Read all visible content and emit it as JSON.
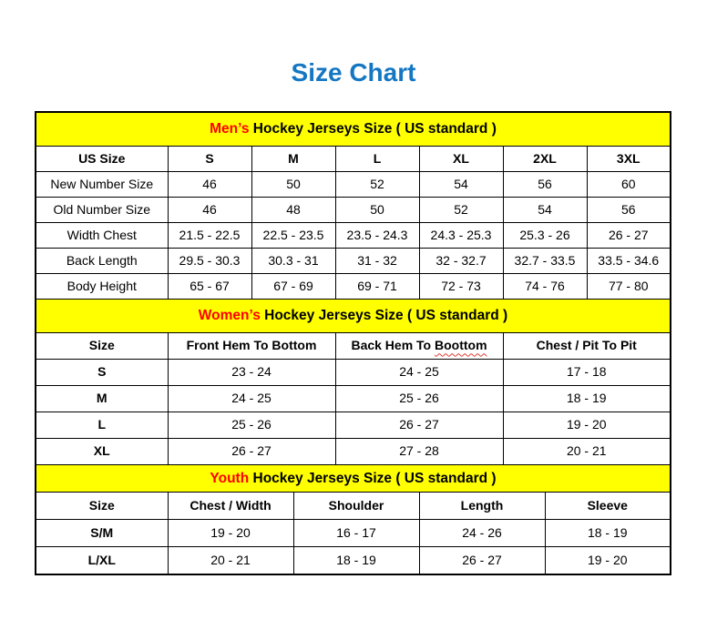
{
  "title": "Size Chart",
  "colors": {
    "title_blue": "#1577c2",
    "section_bar_yellow": "#ffff00",
    "section_accent_red": "#ff0000",
    "spellcheck_squiggle_red": "#e03c31",
    "border_black": "#000000"
  },
  "sections": [
    {
      "id": "men",
      "title_highlight": "Men’s",
      "title_rest": " Hockey Jerseys Size ( US standard )",
      "columns": [
        "US Size",
        "S",
        "M",
        "L",
        "XL",
        "2XL",
        "3XL"
      ],
      "rows": [
        {
          "label": "New Number Size",
          "values": [
            "46",
            "50",
            "52",
            "54",
            "56",
            "60"
          ]
        },
        {
          "label": "Old Number Size",
          "values": [
            "46",
            "48",
            "50",
            "52",
            "54",
            "56"
          ]
        },
        {
          "label": "Width Chest",
          "values": [
            "21.5 - 22.5",
            "22.5 - 23.5",
            "23.5 - 24.3",
            "24.3 - 25.3",
            "25.3 - 26",
            "26 - 27"
          ]
        },
        {
          "label": "Back Length",
          "values": [
            "29.5 - 30.3",
            "30.3 - 31",
            "31 - 32",
            "32 - 32.7",
            "32.7 - 33.5",
            "33.5 - 34.6"
          ]
        },
        {
          "label": "Body Height",
          "values": [
            "65 - 67",
            "67 - 69",
            "69 - 71",
            "72 - 73",
            "74 - 76",
            "77 - 80"
          ]
        }
      ]
    },
    {
      "id": "women",
      "title_highlight": "Women’s",
      "title_rest": " Hockey Jerseys Size ( US standard )",
      "columns": [
        "Size",
        "Front Hem To Bottom",
        {
          "prefix": "Back Hem To ",
          "squiggle": "Boottom"
        },
        "Chest / Pit To Pit"
      ],
      "rows": [
        {
          "label": "S",
          "values": [
            "23 - 24",
            "24 - 25",
            "17 - 18"
          ]
        },
        {
          "label": "M",
          "values": [
            "24 - 25",
            "25 - 26",
            "18 - 19"
          ]
        },
        {
          "label": "L",
          "values": [
            "25 - 26",
            "26 - 27",
            "19 - 20"
          ]
        },
        {
          "label": "XL",
          "values": [
            "26 - 27",
            "27 - 28",
            "20 - 21"
          ]
        }
      ]
    },
    {
      "id": "youth",
      "title_highlight": "Youth",
      "title_rest": " Hockey Jerseys Size ( US standard )",
      "columns": [
        "Size",
        "Chest / Width",
        "Shoulder",
        "Length",
        "Sleeve"
      ],
      "rows": [
        {
          "label": "S/M",
          "values": [
            "19 - 20",
            "16 - 17",
            "24 - 26",
            "18 - 19"
          ]
        },
        {
          "label": "L/XL",
          "values": [
            "20 - 21",
            "18 - 19",
            "26 - 27",
            "19 - 20"
          ]
        }
      ]
    }
  ]
}
